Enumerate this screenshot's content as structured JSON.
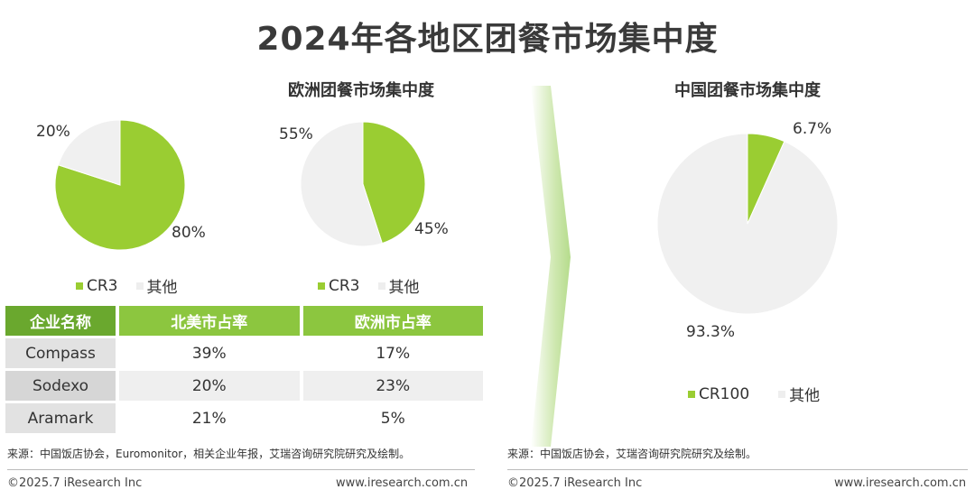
{
  "title": "2024年各地区团餐市场集中度",
  "chart_data": [
    {
      "type": "pie",
      "title": "",
      "slices": [
        {
          "label": "CR3",
          "value": 80,
          "display": "80%",
          "color": "#9acd32"
        },
        {
          "label": "其他",
          "value": 20,
          "display": "20%",
          "color": "#f0f0f0"
        }
      ],
      "legend": [
        "CR3",
        "其他"
      ]
    },
    {
      "type": "pie",
      "title": "欧洲团餐市场集中度",
      "slices": [
        {
          "label": "CR3",
          "value": 45,
          "display": "45%",
          "color": "#9acd32"
        },
        {
          "label": "其他",
          "value": 55,
          "display": "55%",
          "color": "#f0f0f0"
        }
      ],
      "legend": [
        "CR3",
        "其他"
      ]
    },
    {
      "type": "pie",
      "title": "中国团餐市场集中度",
      "slices": [
        {
          "label": "CR100",
          "value": 6.7,
          "display": "6.7%",
          "color": "#9acd32"
        },
        {
          "label": "其他",
          "value": 93.3,
          "display": "93.3%",
          "color": "#f0f0f0"
        }
      ],
      "legend": [
        "CR100",
        "其他"
      ]
    }
  ],
  "table": {
    "headers": [
      "企业名称",
      "北美市占率",
      "欧洲市占率"
    ],
    "rows": [
      [
        "Compass",
        "39%",
        "17%"
      ],
      [
        "Sodexo",
        "20%",
        "23%"
      ],
      [
        "Aramark",
        "21%",
        "5%"
      ]
    ]
  },
  "source_left": "来源：中国饭店协会，Euromonitor，相关企业年报，艾瑞咨询研究院研究及绘制。",
  "source_right": "来源：中国饭店协会，艾瑞咨询研究院研究及绘制。",
  "footer": {
    "copyright": "©2025.7 iResearch Inc",
    "website": "www.iresearch.com.cn"
  },
  "colors": {
    "accent": "#9acd32",
    "other": "#f0f0f0",
    "header_green": "#8cc63f",
    "header_dark": "#6aa82e"
  }
}
